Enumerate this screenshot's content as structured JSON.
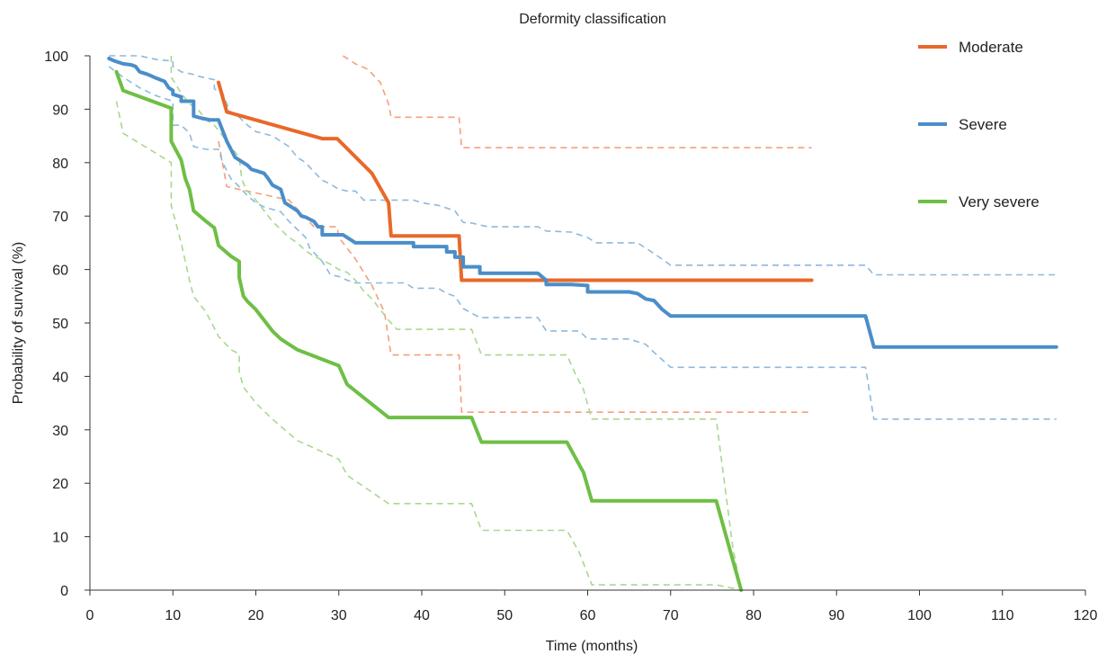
{
  "chart_data": {
    "type": "line",
    "title": "Deformity classification",
    "xlabel": "Time (months)",
    "ylabel": "Probability of survival (%)",
    "xlim": [
      0,
      120
    ],
    "ylim": [
      0,
      100
    ],
    "xticks": [
      0,
      10,
      20,
      30,
      40,
      50,
      60,
      70,
      80,
      90,
      100,
      110,
      120
    ],
    "yticks": [
      0,
      10,
      20,
      30,
      40,
      50,
      60,
      70,
      80,
      90,
      100
    ],
    "grid": false,
    "legend_position": "top-right",
    "series": [
      {
        "name": "Moderate",
        "color": "#E8692A",
        "style": "solid",
        "points": [
          [
            15.5,
            95
          ],
          [
            16.5,
            89.5
          ],
          [
            28,
            84.5
          ],
          [
            29.8,
            84.5
          ],
          [
            34,
            78
          ],
          [
            36,
            72.5
          ],
          [
            36.3,
            66.3
          ],
          [
            44.5,
            66.3
          ],
          [
            44.8,
            58
          ],
          [
            87,
            58
          ]
        ]
      },
      {
        "name": "Severe",
        "color": "#4A8EC9",
        "style": "solid",
        "points": [
          [
            2.3,
            99.5
          ],
          [
            3,
            99
          ],
          [
            4,
            98.5
          ],
          [
            5,
            98.3
          ],
          [
            5.5,
            98
          ],
          [
            6,
            97
          ],
          [
            7,
            96.5
          ],
          [
            8,
            95.8
          ],
          [
            9,
            95.2
          ],
          [
            9.5,
            94
          ],
          [
            10,
            93.5
          ],
          [
            10,
            92.8
          ],
          [
            11,
            92.3
          ],
          [
            11,
            91.5
          ],
          [
            12.5,
            91.5
          ],
          [
            12.5,
            88.7
          ],
          [
            13.5,
            88.3
          ],
          [
            14.5,
            88
          ],
          [
            15.5,
            88
          ],
          [
            16,
            86
          ],
          [
            16.5,
            84
          ],
          [
            17,
            82.5
          ],
          [
            17.5,
            81
          ],
          [
            18,
            80.5
          ],
          [
            19,
            79.5
          ],
          [
            19.5,
            78.7
          ],
          [
            20,
            78.5
          ],
          [
            21,
            78
          ],
          [
            21.5,
            77
          ],
          [
            22,
            75.8
          ],
          [
            23,
            75
          ],
          [
            23.5,
            72.5
          ],
          [
            24,
            72
          ],
          [
            25,
            71
          ],
          [
            25.5,
            70
          ],
          [
            26,
            69.8
          ],
          [
            27,
            69
          ],
          [
            27.5,
            68
          ],
          [
            28,
            68
          ],
          [
            28,
            66.5
          ],
          [
            30.5,
            66.5
          ],
          [
            31.5,
            65.5
          ],
          [
            32,
            65
          ],
          [
            39,
            65
          ],
          [
            39,
            64.3
          ],
          [
            43,
            64.3
          ],
          [
            43,
            63.3
          ],
          [
            44,
            63.3
          ],
          [
            44,
            62.3
          ],
          [
            45,
            62.3
          ],
          [
            45,
            60.5
          ],
          [
            47,
            60.5
          ],
          [
            47,
            59.3
          ],
          [
            54,
            59.3
          ],
          [
            55,
            58
          ],
          [
            55,
            57.2
          ],
          [
            58,
            57.2
          ],
          [
            60,
            57
          ],
          [
            60,
            55.8
          ],
          [
            65,
            55.8
          ],
          [
            66,
            55.5
          ],
          [
            67,
            54.5
          ],
          [
            68,
            54.2
          ],
          [
            69,
            52.5
          ],
          [
            70,
            51.3
          ],
          [
            93.5,
            51.3
          ],
          [
            94.5,
            45.5
          ],
          [
            116.5,
            45.5
          ]
        ]
      },
      {
        "name": "Very severe",
        "color": "#6EBF45",
        "style": "solid",
        "points": [
          [
            3.2,
            97
          ],
          [
            4,
            93.5
          ],
          [
            9.8,
            90.2
          ],
          [
            9.8,
            84
          ],
          [
            11,
            80.5
          ],
          [
            11.5,
            77
          ],
          [
            12,
            75
          ],
          [
            12.5,
            71
          ],
          [
            14,
            69
          ],
          [
            15,
            67.8
          ],
          [
            15.5,
            64.5
          ],
          [
            17,
            62.5
          ],
          [
            18,
            61.5
          ],
          [
            18,
            58.5
          ],
          [
            18.5,
            55
          ],
          [
            19,
            54
          ],
          [
            20,
            52.5
          ],
          [
            21,
            50.5
          ],
          [
            22,
            48.5
          ],
          [
            23,
            47
          ],
          [
            24,
            46
          ],
          [
            25,
            45
          ],
          [
            30,
            42
          ],
          [
            31,
            38.5
          ],
          [
            36,
            32.3
          ],
          [
            46,
            32.3
          ],
          [
            47.2,
            27.7
          ],
          [
            57.5,
            27.7
          ],
          [
            59.5,
            22
          ],
          [
            60.5,
            16.7
          ],
          [
            75.5,
            16.7
          ],
          [
            78.5,
            0
          ]
        ]
      },
      {
        "name": "",
        "color": "#F4A07A",
        "style": "dashed",
        "points": [
          [
            30.5,
            100
          ],
          [
            32,
            98.5
          ],
          [
            33.5,
            97.5
          ],
          [
            35,
            95
          ],
          [
            36,
            91
          ],
          [
            36.3,
            88.5
          ],
          [
            44.5,
            88.5
          ],
          [
            44.8,
            82.8
          ],
          [
            87,
            82.8
          ]
        ]
      },
      {
        "name": "",
        "color": "#F4A07A",
        "style": "dashed",
        "points": [
          [
            15.5,
            84
          ],
          [
            16.5,
            75.5
          ],
          [
            24,
            73
          ],
          [
            27,
            68
          ],
          [
            29.8,
            68
          ],
          [
            30,
            66
          ],
          [
            32,
            62
          ],
          [
            34,
            57
          ],
          [
            35.5,
            52
          ],
          [
            36.3,
            44
          ],
          [
            44.5,
            44
          ],
          [
            44.8,
            33.3
          ],
          [
            87,
            33.3
          ]
        ]
      },
      {
        "name": "",
        "color": "#8DB9DE",
        "style": "dashed",
        "points": [
          [
            2.3,
            100
          ],
          [
            6,
            100
          ],
          [
            8,
            99.3
          ],
          [
            10,
            99
          ],
          [
            10,
            98
          ],
          [
            11,
            97
          ],
          [
            12.5,
            96.5
          ],
          [
            13,
            96.2
          ],
          [
            15,
            95.5
          ],
          [
            15,
            93.8
          ],
          [
            16,
            93
          ],
          [
            16.5,
            91
          ],
          [
            17,
            89.3
          ],
          [
            18,
            88.5
          ],
          [
            19,
            87
          ],
          [
            20,
            85.8
          ],
          [
            22,
            85
          ],
          [
            24,
            83
          ],
          [
            25,
            81
          ],
          [
            26,
            80
          ],
          [
            27,
            78.3
          ],
          [
            28,
            76.7
          ],
          [
            29,
            76
          ],
          [
            30,
            75
          ],
          [
            31,
            74.7
          ],
          [
            32,
            74.7
          ],
          [
            33,
            73
          ],
          [
            39,
            73
          ],
          [
            40,
            72.5
          ],
          [
            42,
            72
          ],
          [
            44,
            71
          ],
          [
            45,
            68.8
          ],
          [
            46,
            68.7
          ],
          [
            48,
            68
          ],
          [
            54,
            68
          ],
          [
            55,
            67.2
          ],
          [
            58,
            67
          ],
          [
            60,
            66
          ],
          [
            61,
            65
          ],
          [
            66,
            65
          ],
          [
            67,
            64
          ],
          [
            68,
            63
          ],
          [
            70,
            60.8
          ],
          [
            93.5,
            60.8
          ],
          [
            94.5,
            59
          ],
          [
            116.5,
            59
          ]
        ]
      },
      {
        "name": "",
        "color": "#8DB9DE",
        "style": "dashed",
        "points": [
          [
            2.3,
            98
          ],
          [
            4,
            96
          ],
          [
            6,
            94
          ],
          [
            8,
            92.5
          ],
          [
            10,
            91.5
          ],
          [
            10,
            87
          ],
          [
            11,
            87
          ],
          [
            12,
            85.5
          ],
          [
            12.5,
            83
          ],
          [
            14,
            82.5
          ],
          [
            15.5,
            82.5
          ],
          [
            16,
            80
          ],
          [
            17,
            77
          ],
          [
            18,
            75.5
          ],
          [
            19,
            73.8
          ],
          [
            20,
            72.5
          ],
          [
            21,
            71.7
          ],
          [
            23,
            70.8
          ],
          [
            24,
            69
          ],
          [
            25,
            67.5
          ],
          [
            26,
            66
          ],
          [
            26.5,
            64
          ],
          [
            28,
            61.5
          ],
          [
            29,
            59
          ],
          [
            30,
            58.7
          ],
          [
            31,
            58
          ],
          [
            32,
            57.5
          ],
          [
            38,
            57.5
          ],
          [
            39,
            56.5
          ],
          [
            42,
            56.5
          ],
          [
            43,
            55.5
          ],
          [
            44,
            55
          ],
          [
            45,
            52.7
          ],
          [
            47,
            51
          ],
          [
            54,
            51
          ],
          [
            55,
            48.5
          ],
          [
            59,
            48.5
          ],
          [
            60,
            47
          ],
          [
            65,
            47
          ],
          [
            67,
            46
          ],
          [
            68,
            44.5
          ],
          [
            70,
            41.7
          ],
          [
            93.5,
            41.7
          ],
          [
            94.5,
            32
          ],
          [
            116.5,
            32
          ]
        ]
      },
      {
        "name": "",
        "color": "#A8D890",
        "style": "dashed",
        "points": [
          [
            9.8,
            100
          ],
          [
            9.8,
            96
          ],
          [
            10.2,
            95
          ],
          [
            11,
            93
          ],
          [
            12,
            91
          ],
          [
            13,
            90
          ],
          [
            14,
            88
          ],
          [
            15,
            87
          ],
          [
            16,
            85
          ],
          [
            17,
            83
          ],
          [
            18,
            81
          ],
          [
            18.3,
            77
          ],
          [
            18.8,
            75
          ],
          [
            20,
            73
          ],
          [
            21,
            71
          ],
          [
            22,
            69
          ],
          [
            23,
            67.5
          ],
          [
            24,
            66
          ],
          [
            25,
            65
          ],
          [
            26,
            63.5
          ],
          [
            27,
            62.5
          ],
          [
            29,
            61
          ],
          [
            30,
            60
          ],
          [
            31,
            59.5
          ],
          [
            32,
            58
          ],
          [
            33,
            56
          ],
          [
            34,
            54.5
          ],
          [
            35,
            52.5
          ],
          [
            36,
            50.5
          ],
          [
            37,
            48.8
          ],
          [
            46,
            48.8
          ],
          [
            47.2,
            44
          ],
          [
            57.5,
            44
          ],
          [
            58.5,
            40.5
          ],
          [
            59.5,
            37.5
          ],
          [
            60.5,
            32
          ],
          [
            75.5,
            32
          ],
          [
            76.5,
            20
          ],
          [
            77.5,
            8
          ],
          [
            78.5,
            0
          ]
        ]
      },
      {
        "name": "",
        "color": "#A8D890",
        "style": "dashed",
        "points": [
          [
            3.2,
            91.5
          ],
          [
            4,
            85.5
          ],
          [
            9.8,
            80
          ],
          [
            9.8,
            72
          ],
          [
            11,
            65
          ],
          [
            12,
            58
          ],
          [
            12.5,
            55
          ],
          [
            14,
            52
          ],
          [
            15,
            49
          ],
          [
            15.5,
            47.5
          ],
          [
            17,
            45
          ],
          [
            18,
            44.2
          ],
          [
            18,
            41
          ],
          [
            18.5,
            38
          ],
          [
            20,
            35
          ],
          [
            22,
            32
          ],
          [
            25,
            28
          ],
          [
            30,
            24.5
          ],
          [
            31,
            21.5
          ],
          [
            36,
            16.2
          ],
          [
            46,
            16.2
          ],
          [
            47.2,
            11.2
          ],
          [
            57.5,
            11.2
          ],
          [
            59,
            7
          ],
          [
            60.5,
            1
          ],
          [
            75.5,
            1
          ],
          [
            78.5,
            0
          ]
        ]
      }
    ]
  }
}
